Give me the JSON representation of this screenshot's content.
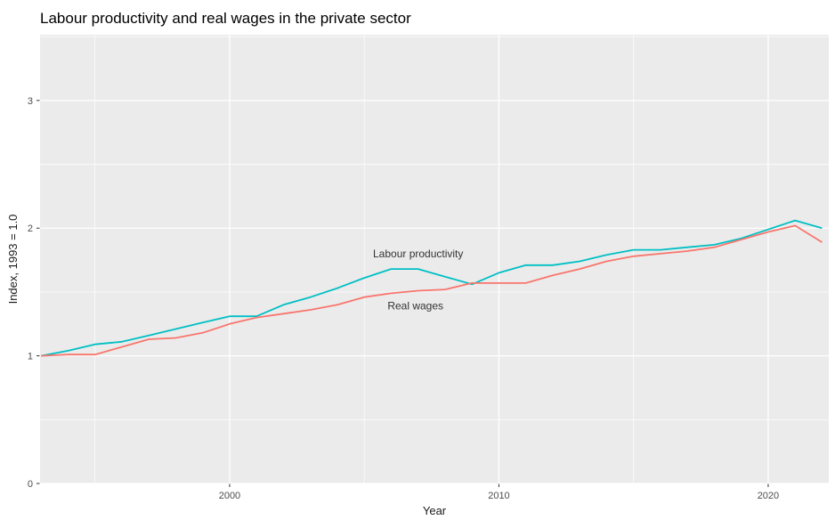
{
  "title": "Labour productivity and real wages in the private sector",
  "chart_data": {
    "type": "line",
    "title": "Labour productivity and real wages in the private sector",
    "xlabel": "Year",
    "ylabel": "Index, 1993 = 1.0",
    "x": [
      1993,
      1994,
      1995,
      1996,
      1997,
      1998,
      1999,
      2000,
      2001,
      2002,
      2003,
      2004,
      2005,
      2006,
      2007,
      2008,
      2009,
      2010,
      2011,
      2012,
      2013,
      2014,
      2015,
      2016,
      2017,
      2018,
      2019,
      2020,
      2021,
      2022
    ],
    "series": [
      {
        "name": "Labour productivity",
        "color": "#00BFC4",
        "values": [
          1.0,
          1.04,
          1.09,
          1.11,
          1.16,
          1.21,
          1.26,
          1.31,
          1.31,
          1.4,
          1.46,
          1.53,
          1.61,
          1.68,
          1.68,
          1.62,
          1.56,
          1.65,
          1.71,
          1.71,
          1.74,
          1.79,
          1.83,
          1.83,
          1.85,
          1.87,
          1.92,
          1.99,
          2.06,
          2.0
        ]
      },
      {
        "name": "Real wages",
        "color": "#F8766D",
        "values": [
          1.0,
          1.01,
          1.01,
          1.07,
          1.13,
          1.14,
          1.18,
          1.25,
          1.3,
          1.33,
          1.36,
          1.4,
          1.46,
          1.49,
          1.51,
          1.52,
          1.57,
          1.57,
          1.57,
          1.63,
          1.68,
          1.74,
          1.78,
          1.8,
          1.82,
          1.85,
          1.91,
          1.97,
          2.02,
          1.89
        ]
      }
    ],
    "annotations": [
      {
        "text": "Labour productivity",
        "x": 2007.0,
        "y": 1.8
      },
      {
        "text": "Real wages",
        "x": 2006.9,
        "y": 1.39
      }
    ],
    "x_ticks": [
      2000,
      2010,
      2020
    ],
    "x_minor_ticks": [
      1995,
      2005,
      2015
    ],
    "y_ticks": [
      0,
      1,
      2,
      3
    ],
    "y_minor_ticks": [
      0.5,
      1.5,
      2.5,
      3.5
    ],
    "xlim": [
      1992.96,
      2022.25
    ],
    "ylim": [
      0,
      3.515
    ],
    "grid": true,
    "legend_position": "none",
    "panel_background": "#EBEBEB",
    "grid_color": "#FFFFFF",
    "tick_color": "#333333",
    "tick_label_color": "#4D4D4D"
  }
}
